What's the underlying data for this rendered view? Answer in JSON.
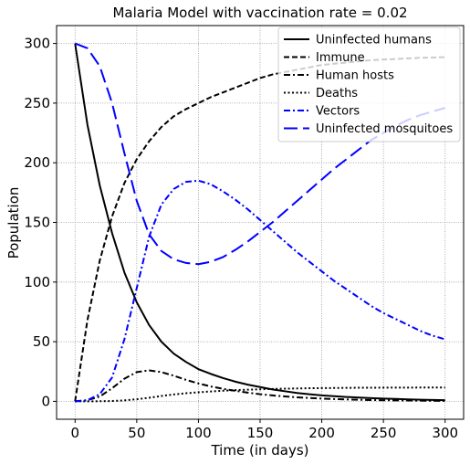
{
  "chart_data": {
    "type": "line",
    "title": "Malaria Model with vaccination rate = 0.02",
    "xlabel": "Time (in days)",
    "ylabel": "Population",
    "xlim": [
      -15,
      315
    ],
    "ylim": [
      -15,
      315
    ],
    "xticks": [
      0,
      50,
      100,
      150,
      200,
      250,
      300
    ],
    "yticks": [
      0,
      50,
      100,
      150,
      200,
      250,
      300
    ],
    "grid": true,
    "legend_position": "top-right",
    "x": [
      0,
      10,
      20,
      30,
      40,
      50,
      60,
      70,
      80,
      90,
      100,
      110,
      120,
      130,
      140,
      150,
      160,
      170,
      180,
      190,
      200,
      210,
      220,
      230,
      240,
      250,
      260,
      270,
      280,
      290,
      300
    ],
    "series": [
      {
        "name": "Uninfected humans",
        "color": "#000000",
        "dash": "solid",
        "values": [
          300,
          232,
          181,
          141,
          108,
          83,
          64,
          50,
          40,
          33,
          27,
          23,
          19.5,
          16.5,
          14,
          12,
          10,
          8.5,
          7,
          6,
          5,
          4.3,
          3.7,
          3.2,
          2.7,
          2.3,
          2,
          1.7,
          1.4,
          1.2,
          1
        ]
      },
      {
        "name": "Immune",
        "color": "#000000",
        "dash": "dashed",
        "values": [
          0,
          68,
          118,
          155,
          183,
          203,
          218,
          230,
          239,
          245,
          250,
          255,
          259,
          263,
          267,
          271,
          274,
          276,
          278,
          280,
          282,
          283,
          284,
          285,
          286,
          286.5,
          287,
          287.5,
          288,
          288.2,
          288.5
        ]
      },
      {
        "name": "Human hosts",
        "color": "#000000",
        "dash": "dashdot",
        "values": [
          0,
          1,
          4,
          11,
          19,
          24.5,
          26,
          24.5,
          21.5,
          18,
          15,
          12.5,
          10.5,
          8.8,
          7.3,
          6,
          5,
          4.1,
          3.4,
          2.8,
          2.3,
          1.9,
          1.6,
          1.3,
          1.1,
          0.9,
          0.8,
          0.7,
          0.6,
          0.5,
          0.4
        ]
      },
      {
        "name": "Deaths",
        "color": "#000000",
        "dash": "dotted",
        "values": [
          0,
          0,
          0.1,
          0.3,
          0.8,
          1.8,
          3,
          4.5,
          5.8,
          6.8,
          7.6,
          8.3,
          8.9,
          9.4,
          9.8,
          10.1,
          10.4,
          10.6,
          10.8,
          11,
          11.1,
          11.2,
          11.3,
          11.4,
          11.4,
          11.5,
          11.5,
          11.5,
          11.6,
          11.6,
          11.6
        ]
      },
      {
        "name": "Vectors",
        "color": "#0000ff",
        "dash": "dashdot",
        "values": [
          0,
          1,
          6,
          20,
          52,
          95,
          138,
          165,
          178,
          184,
          185,
          182,
          176,
          169,
          161,
          152,
          143,
          134,
          125,
          117,
          109,
          101,
          94,
          87,
          80,
          74,
          69,
          64,
          59,
          55,
          52
        ]
      },
      {
        "name": "Uninfected mosquitoes",
        "color": "#0000ff",
        "dash": "longdash",
        "values": [
          300,
          296,
          281,
          250,
          208,
          168,
          140,
          126,
          119,
          116,
          115,
          117,
          121,
          127,
          134,
          142,
          150,
          159,
          168,
          177,
          186,
          195,
          203,
          211,
          219,
          225,
          231,
          236,
          240,
          243,
          246
        ]
      }
    ]
  }
}
